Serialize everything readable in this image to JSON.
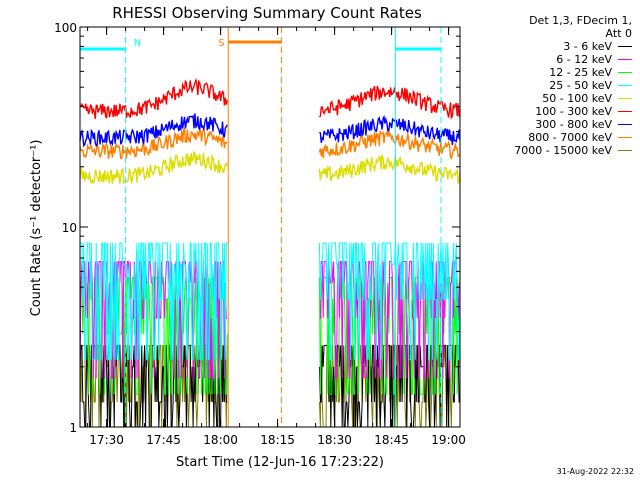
{
  "chart_data": {
    "type": "line",
    "title": "RHESSI Observing Summary Count Rates",
    "xlabel": "Start Time (12-Jun-16 17:23:22)",
    "ylabel": "Count Rate (s⁻¹ detector⁻¹)",
    "y_scale": "log",
    "ylim": [
      1,
      100
    ],
    "y_ticks": [
      "1",
      "10",
      "100"
    ],
    "x_range": [
      "17:23",
      "19:03"
    ],
    "x_ticks": [
      "17:30",
      "17:45",
      "18:00",
      "18:15",
      "18:30",
      "18:45",
      "19:00"
    ],
    "legend_header": [
      "Det 1,3, FDecim 1,",
      "Att 0"
    ],
    "series": [
      {
        "name": "3 - 6 keV",
        "color": "#000000",
        "level": 1.6
      },
      {
        "name": "6 - 12 keV",
        "color": "#ff00ff",
        "level": 4.2
      },
      {
        "name": "12 - 25 keV",
        "color": "#00ff00",
        "level": 3.5
      },
      {
        "name": "25 - 50 keV",
        "color": "#00ffff",
        "level": 5.2
      },
      {
        "name": "50 - 100 keV",
        "color": "#dddd00",
        "level": 18,
        "peak": 22
      },
      {
        "name": "100 - 300 keV",
        "color": "#ff0000",
        "level": 38,
        "peak": 50
      },
      {
        "name": "300 - 800 keV",
        "color": "#0000ff",
        "level": 28,
        "peak": 34
      },
      {
        "name": "800 - 7000 keV",
        "color": "#ff8000",
        "level": 24,
        "peak": 29
      },
      {
        "name": "7000 - 15000 keV",
        "color": "#808000",
        "level": 1.6
      }
    ],
    "data_gaps": [
      [
        "18:02",
        "18:26"
      ]
    ],
    "annotations": [
      {
        "label": "N",
        "color": "#00ffff",
        "ranges": [
          [
            "17:23",
            "17:35"
          ],
          [
            "18:46",
            "18:58"
          ]
        ]
      },
      {
        "label": "S",
        "color": "#ff8000",
        "ranges": [
          [
            "18:02",
            "18:16"
          ]
        ]
      }
    ]
  },
  "timestamp": "31-Aug-2022 22:32"
}
